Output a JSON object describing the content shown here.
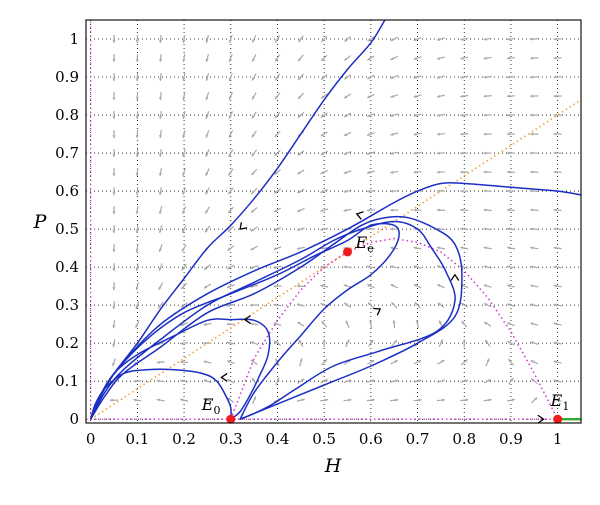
{
  "chart_data": {
    "type": "line",
    "title": "",
    "xlabel": "H",
    "ylabel": "P",
    "xlim": [
      -0.01,
      1.05
    ],
    "ylim": [
      -0.01,
      1.05
    ],
    "x_ticks": [
      "0",
      "0.1",
      "0.2",
      "0.3",
      "0.4",
      "0.5",
      "0.6",
      "0.7",
      "0.8",
      "0.9",
      "1"
    ],
    "y_ticks": [
      "0",
      "0.1",
      "0.2",
      "0.3",
      "0.4",
      "0.5",
      "0.6",
      "0.7",
      "0.8",
      "0.9",
      "1"
    ],
    "grid": true,
    "vector_field": true,
    "colors": {
      "trajectory": "#1c2fc4",
      "nullcline_h": "#d83ad8",
      "nullcline_p": "#f0a040",
      "equilibrium": "#ee1c1c",
      "stable_segment": "#2cae2c",
      "field_arrow": "#a8a8a8"
    },
    "equilibria": [
      {
        "name": "E",
        "sub": "0",
        "x": 0.3,
        "y": 0.0
      },
      {
        "name": "E",
        "sub": "1",
        "x": 1.0,
        "y": 0.0
      },
      {
        "name": "E",
        "sub": "e",
        "x": 0.55,
        "y": 0.44
      }
    ],
    "nullcline_h": [
      [
        0.3,
        0.0
      ],
      [
        0.35,
        0.16
      ],
      [
        0.4,
        0.26
      ],
      [
        0.45,
        0.34
      ],
      [
        0.5,
        0.4
      ],
      [
        0.55,
        0.44
      ],
      [
        0.6,
        0.465
      ],
      [
        0.65,
        0.475
      ],
      [
        0.7,
        0.465
      ],
      [
        0.75,
        0.44
      ],
      [
        0.8,
        0.39
      ],
      [
        0.85,
        0.32
      ],
      [
        0.9,
        0.23
      ],
      [
        0.95,
        0.12
      ],
      [
        1.0,
        0.0
      ]
    ],
    "nullcline_p": [
      [
        0.0,
        0.0
      ],
      [
        1.05,
        0.84
      ]
    ],
    "stable_segment": [
      [
        1.0,
        0.0
      ],
      [
        1.05,
        0.0
      ]
    ],
    "trajectories": [
      [
        [
          0.0,
          0.0
        ],
        [
          0.02,
          0.06
        ],
        [
          0.05,
          0.12
        ],
        [
          0.1,
          0.2
        ],
        [
          0.15,
          0.29
        ],
        [
          0.2,
          0.37
        ],
        [
          0.25,
          0.45
        ],
        [
          0.3,
          0.51
        ],
        [
          0.35,
          0.58
        ],
        [
          0.4,
          0.66
        ],
        [
          0.45,
          0.75
        ],
        [
          0.5,
          0.84
        ],
        [
          0.55,
          0.92
        ],
        [
          0.6,
          0.99
        ],
        [
          0.63,
          1.05
        ]
      ],
      [
        [
          0.0,
          0.0
        ],
        [
          0.03,
          0.08
        ],
        [
          0.07,
          0.15
        ],
        [
          0.15,
          0.25
        ],
        [
          0.25,
          0.33
        ],
        [
          0.35,
          0.39
        ],
        [
          0.45,
          0.44
        ],
        [
          0.55,
          0.5
        ],
        [
          0.65,
          0.57
        ],
        [
          0.7,
          0.6
        ],
        [
          0.75,
          0.62
        ],
        [
          0.8,
          0.62
        ],
        [
          0.9,
          0.61
        ],
        [
          1.0,
          0.6
        ],
        [
          1.05,
          0.59
        ]
      ],
      [
        [
          0.0,
          0.0
        ],
        [
          0.03,
          0.07
        ],
        [
          0.07,
          0.13
        ],
        [
          0.15,
          0.21
        ],
        [
          0.25,
          0.3
        ],
        [
          0.35,
          0.36
        ],
        [
          0.45,
          0.42
        ],
        [
          0.52,
          0.47
        ],
        [
          0.58,
          0.5
        ],
        [
          0.65,
          0.52
        ],
        [
          0.7,
          0.5
        ],
        [
          0.73,
          0.45
        ],
        [
          0.76,
          0.39
        ],
        [
          0.78,
          0.31
        ],
        [
          0.74,
          0.23
        ],
        [
          0.62,
          0.18
        ],
        [
          0.52,
          0.14
        ],
        [
          0.44,
          0.08
        ],
        [
          0.39,
          0.04
        ],
        [
          0.35,
          0.015
        ],
        [
          0.32,
          0.0
        ]
      ],
      [
        [
          0.0,
          0.0
        ],
        [
          0.03,
          0.06
        ],
        [
          0.07,
          0.12
        ],
        [
          0.15,
          0.19
        ],
        [
          0.25,
          0.28
        ],
        [
          0.35,
          0.33
        ],
        [
          0.45,
          0.4
        ],
        [
          0.52,
          0.46
        ],
        [
          0.58,
          0.51
        ],
        [
          0.63,
          0.53
        ],
        [
          0.68,
          0.53
        ],
        [
          0.74,
          0.5
        ],
        [
          0.78,
          0.46
        ],
        [
          0.795,
          0.38
        ],
        [
          0.78,
          0.27
        ],
        [
          0.7,
          0.2
        ],
        [
          0.6,
          0.14
        ],
        [
          0.5,
          0.09
        ],
        [
          0.42,
          0.05
        ],
        [
          0.36,
          0.02
        ],
        [
          0.32,
          0.0
        ]
      ],
      [
        [
          0.32,
          0.0
        ],
        [
          0.35,
          0.07
        ],
        [
          0.4,
          0.15
        ],
        [
          0.45,
          0.22
        ],
        [
          0.5,
          0.29
        ],
        [
          0.55,
          0.34
        ],
        [
          0.6,
          0.38
        ],
        [
          0.64,
          0.43
        ],
        [
          0.66,
          0.48
        ],
        [
          0.65,
          0.51
        ],
        [
          0.6,
          0.51
        ],
        [
          0.55,
          0.47
        ],
        [
          0.48,
          0.43
        ],
        [
          0.4,
          0.38
        ],
        [
          0.3,
          0.33
        ],
        [
          0.2,
          0.28
        ],
        [
          0.12,
          0.21
        ],
        [
          0.05,
          0.12
        ],
        [
          0.02,
          0.06
        ],
        [
          0.0,
          0.0
        ]
      ],
      [
        [
          0.0,
          0.0
        ],
        [
          0.02,
          0.06
        ],
        [
          0.05,
          0.12
        ],
        [
          0.1,
          0.17
        ],
        [
          0.18,
          0.22
        ],
        [
          0.25,
          0.26
        ],
        [
          0.3,
          0.262
        ],
        [
          0.35,
          0.26
        ],
        [
          0.38,
          0.23
        ],
        [
          0.38,
          0.17
        ],
        [
          0.36,
          0.11
        ],
        [
          0.34,
          0.06
        ],
        [
          0.32,
          0.02
        ],
        [
          0.3,
          0.0
        ]
      ],
      [
        [
          0.0,
          0.0
        ],
        [
          0.01,
          0.04
        ],
        [
          0.03,
          0.08
        ],
        [
          0.07,
          0.12
        ],
        [
          0.12,
          0.13
        ],
        [
          0.18,
          0.13
        ],
        [
          0.24,
          0.12
        ],
        [
          0.27,
          0.1
        ],
        [
          0.29,
          0.06
        ],
        [
          0.3,
          0.03
        ],
        [
          0.3,
          0.0
        ]
      ]
    ],
    "direction_arrows": [
      {
        "x": 0.32,
        "y": 0.5,
        "dx": -1,
        "dy": -1
      },
      {
        "x": 0.57,
        "y": 0.54,
        "dx": -1,
        "dy": 0.3
      },
      {
        "x": 0.78,
        "y": 0.38,
        "dx": 0,
        "dy": 1
      },
      {
        "x": 0.62,
        "y": 0.29,
        "dx": 1,
        "dy": 0.6
      },
      {
        "x": 0.33,
        "y": 0.262,
        "dx": -1,
        "dy": 0
      },
      {
        "x": 0.28,
        "y": 0.11,
        "dx": -1,
        "dy": 0
      },
      {
        "x": 0.97,
        "y": 0.0,
        "dx": 1,
        "dy": 0
      }
    ]
  }
}
